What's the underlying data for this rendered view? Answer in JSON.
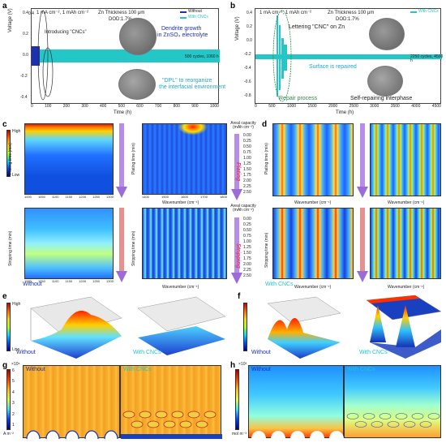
{
  "panels": {
    "a": {
      "label": "a",
      "conditions": "1 mA cm⁻², 1 mAh cm⁻²",
      "zn_thickness": "Zn Thickness 100 μm",
      "dod": "DOD:1.7%",
      "legend_without": "Without",
      "legend_with": "With CNCs",
      "ann_introducing": "Introducing \"CNCs\"",
      "ann_dendrite_1": "Dendrite growth",
      "ann_dendrite_2": "in ZnSO₄ electrolyte",
      "ann_dpl_1": "\"DPL\" to reorganize",
      "ann_dpl_2": "the interfacial environment",
      "cycles": "500 cycles, 1060 h",
      "ylabel": "Voltage (V)",
      "xlabel": "Time (h)",
      "xticks": [
        "0",
        "100",
        "200",
        "300",
        "400",
        "500",
        "600",
        "700",
        "800",
        "900",
        "1000"
      ],
      "yticks": [
        "0.4",
        "0.2",
        "0.0",
        "-0.2",
        "-0.4"
      ]
    },
    "b": {
      "label": "b",
      "conditions": "1 mA cm⁻², 1 mAh cm⁻²",
      "zn_thickness": "Zn Thickness 100 μm",
      "dod": "DOD:1.7%",
      "legend_with": "With CNCs",
      "ann_lettering": "Lettering \"CNC\" on Zn",
      "ann_repaired": "Surface is repaired",
      "cycles": "2250 cycles, 4500 h",
      "ann_repair": "Repair process",
      "ann_self": "Self-repairing interphase",
      "ylabel": "Voltage (V)",
      "xlabel": "Time (h)",
      "xticks": [
        "0",
        "500",
        "1000",
        "1500",
        "2000",
        "2500",
        "3000",
        "3500",
        "4000",
        "4500"
      ],
      "yticks": [
        "0.4",
        "0.2",
        "0.0",
        "-0.2",
        "-0.4",
        "-0.6",
        "-0.8"
      ]
    },
    "c": {
      "label": "c",
      "cb_high": "High",
      "cb_low": "Low",
      "tag": "Without",
      "ylabel_plating": "Plating time (min)",
      "ylabel_stripping": "Stripping time (min)",
      "xlabel": "Wavenumber (cm⁻¹)",
      "xticks_left": [
        "1000",
        "1050",
        "1100",
        "1150",
        "1200",
        "1250",
        "1300"
      ],
      "xticks_right": [
        "1400",
        "1450",
        "1500",
        "1550",
        "1600",
        "1650",
        "1700",
        "1750",
        "1800"
      ],
      "yticks": [
        "0",
        "5",
        "10",
        "15",
        "20",
        "25",
        "30"
      ]
    },
    "areal": {
      "title_1": "Areal capacity",
      "unit_1": "(mAh cm⁻²)",
      "plating_values": [
        "0.00",
        "0.25",
        "0.50",
        "0.75",
        "1.00",
        "1.25",
        "1.50",
        "1.75",
        "2.00",
        "2.25",
        "2.50"
      ],
      "plating_label": "Plating",
      "title_2": "Areal capacity",
      "unit_2": "(mAh cm⁻²)",
      "stripping_values": [
        "0.00",
        "0.25",
        "0.50",
        "0.75",
        "1.00",
        "1.25",
        "1.50",
        "1.75",
        "2.00",
        "2.25",
        "2.50"
      ],
      "stripping_label": "Stripping"
    },
    "d": {
      "label": "d",
      "tag": "With CNCs",
      "ylabel_plating": "Plating time (min)",
      "ylabel_stripping": "Stripping time (min)",
      "xlabel": "Wavenumber (cm⁻¹)"
    },
    "e": {
      "label": "e",
      "cb_high": "High",
      "cb_low": "Low",
      "tag_left": "Without",
      "tag_right": "With CNCs"
    },
    "f": {
      "label": "f",
      "tag_left": "Without",
      "tag_right": "With CNCs"
    },
    "g": {
      "label": "g",
      "cb_exp": "×10⁵",
      "cb_ticks": [
        "6",
        "5",
        "4",
        "3",
        "2",
        "1"
      ],
      "cb_unit": "A m⁻²",
      "tag_left": "Without",
      "tag_right": "With CNCs"
    },
    "h": {
      "label": "h",
      "cb_exp": "×10³",
      "cb_unit": "mol m⁻³",
      "tag_left": "Without",
      "tag_right": "With CNCs"
    }
  },
  "colors": {
    "without": "#1d2fb5",
    "with_cncs": "#23c7c7",
    "plating": "#e0405a",
    "stripping": "#e0405a",
    "arrow": "#9b6bd8"
  }
}
